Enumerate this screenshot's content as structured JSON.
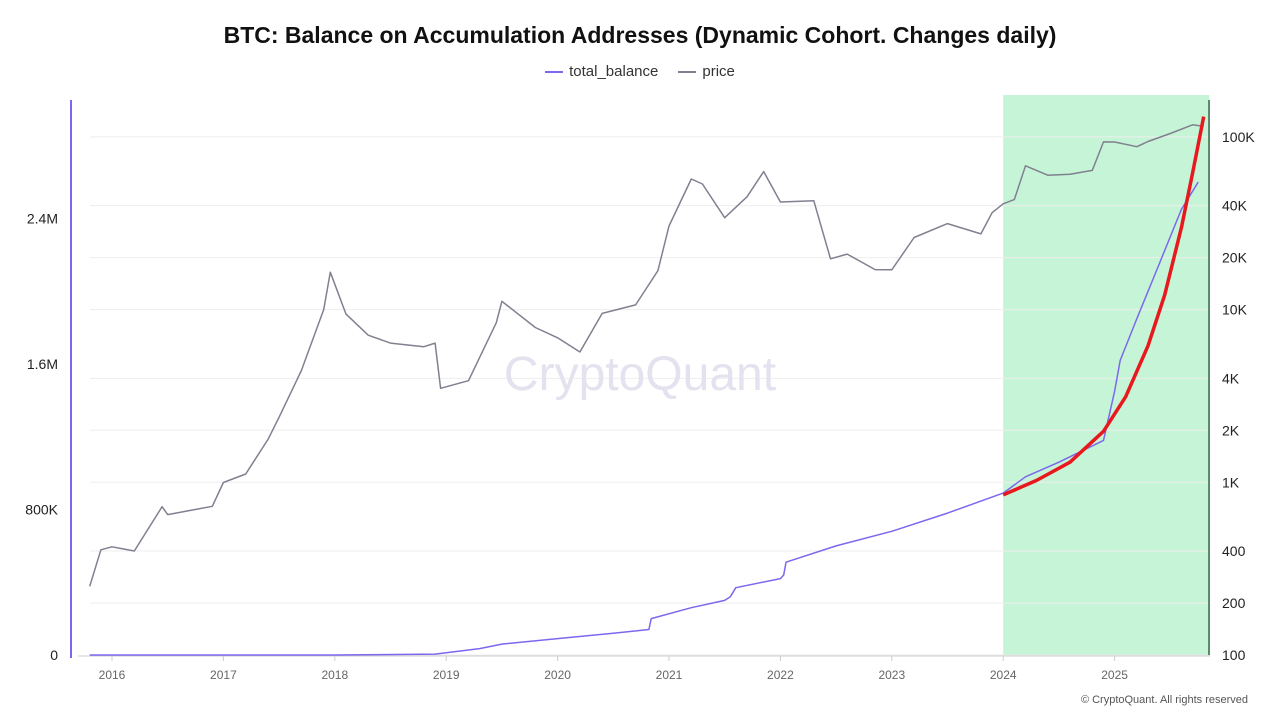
{
  "chart_data": {
    "type": "line",
    "title": "BTC: Balance on Accumulation Addresses (Dynamic Cohort. Changes daily)",
    "legend_position": "top",
    "grid": true,
    "x_ticks": [
      "2016",
      "2017",
      "2018",
      "2019",
      "2020",
      "2021",
      "2022",
      "2023",
      "2024",
      "2025"
    ],
    "left_axis": {
      "ticks": [
        "0",
        "800K",
        "1.6M",
        "2.4M"
      ],
      "tick_values": [
        0,
        800000,
        1600000,
        2400000
      ],
      "range": [
        0,
        3080000
      ]
    },
    "right_axis": {
      "scale": "log",
      "ticks": [
        "100",
        "200",
        "400",
        "1K",
        "2K",
        "4K",
        "10K",
        "20K",
        "40K",
        "100K"
      ],
      "tick_values": [
        100,
        200,
        400,
        1000,
        2000,
        4000,
        10000,
        20000,
        40000,
        100000
      ]
    },
    "highlight_region": {
      "from": 2024.0,
      "to": 2025.85,
      "color": "#c6f4d6"
    },
    "series": [
      {
        "name": "total_balance",
        "axis": "left",
        "color": "#7b68ee",
        "x": [
          2015.8,
          2018.0,
          2018.9,
          2019.3,
          2019.5,
          2020.0,
          2020.5,
          2020.82,
          2020.84,
          2021.2,
          2021.5,
          2021.55,
          2021.6,
          2022.0,
          2022.03,
          2022.05,
          2022.5,
          2023.0,
          2023.5,
          2024.0,
          2024.2,
          2024.5,
          2024.9,
          2025.0,
          2025.05,
          2025.2,
          2025.4,
          2025.6,
          2025.75
        ],
        "values": [
          0,
          0,
          5000,
          35000,
          60000,
          90000,
          120000,
          140000,
          200000,
          260000,
          300000,
          320000,
          370000,
          420000,
          440000,
          510000,
          600000,
          680000,
          780000,
          890000,
          980000,
          1060000,
          1180000,
          1450000,
          1620000,
          1850000,
          2150000,
          2450000,
          2600000
        ]
      },
      {
        "name": "price",
        "axis": "right",
        "color": "#808090",
        "x": [
          2015.8,
          2015.9,
          2016.0,
          2016.2,
          2016.45,
          2016.5,
          2016.9,
          2017.0,
          2017.2,
          2017.4,
          2017.5,
          2017.7,
          2017.9,
          2017.96,
          2018.1,
          2018.3,
          2018.5,
          2018.8,
          2018.9,
          2018.95,
          2019.2,
          2019.45,
          2019.5,
          2019.8,
          2020.0,
          2020.2,
          2020.4,
          2020.7,
          2020.9,
          2021.0,
          2021.2,
          2021.3,
          2021.5,
          2021.7,
          2021.85,
          2022.0,
          2022.3,
          2022.45,
          2022.6,
          2022.85,
          2023.0,
          2023.2,
          2023.5,
          2023.8,
          2023.9,
          2024.0,
          2024.1,
          2024.2,
          2024.4,
          2024.6,
          2024.8,
          2024.9,
          2025.0,
          2025.2,
          2025.3,
          2025.5,
          2025.7,
          2025.8
        ],
        "values": [
          250,
          400,
          430,
          420,
          700,
          650,
          750,
          950,
          1100,
          1800,
          2500,
          4300,
          10000,
          17000,
          9000,
          7000,
          6500,
          6400,
          6200,
          3500,
          4000,
          8000,
          11000,
          8000,
          7200,
          5500,
          9500,
          11000,
          16000,
          30000,
          58000,
          56000,
          33000,
          45000,
          65000,
          40000,
          42000,
          20000,
          22000,
          16500,
          17000,
          27000,
          30000,
          27000,
          37000,
          43000,
          42000,
          68000,
          62000,
          58000,
          63000,
          95000,
          98000,
          85000,
          94000,
          108000,
          112000,
          115000
        ]
      },
      {
        "name": "",
        "axis": "left",
        "color": "#e8191e",
        "x": [
          2024.0,
          2024.3,
          2024.6,
          2024.9,
          2025.1,
          2025.3,
          2025.45,
          2025.6,
          2025.7,
          2025.8
        ],
        "values": [
          880000,
          960000,
          1060000,
          1230000,
          1420000,
          1700000,
          1980000,
          2350000,
          2650000,
          2960000
        ]
      }
    ]
  },
  "legend": {
    "total_balance": "total_balance",
    "price": "price"
  },
  "watermark": "CryptoQuant",
  "credit": "© CryptoQuant. All rights reserved"
}
